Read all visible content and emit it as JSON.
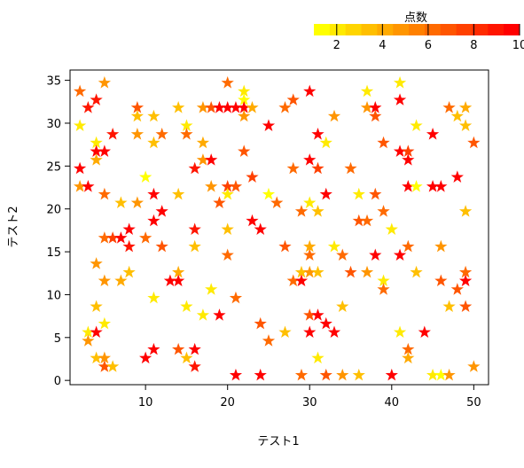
{
  "chart_data": {
    "type": "scatter",
    "marker": "star",
    "xlabel": "テスト1",
    "ylabel": "テスト2",
    "xlim": [
      0.8,
      51.8
    ],
    "ylim": [
      -0.5,
      36.2
    ],
    "x_ticks": [
      10,
      20,
      30,
      40,
      50
    ],
    "y_ticks": [
      0,
      5,
      10,
      15,
      20,
      25,
      30,
      35
    ],
    "grid": false,
    "legend": {
      "title": "点数",
      "placement": "top-right",
      "ticks": [
        2,
        4,
        6,
        8,
        10
      ],
      "range": [
        1,
        10
      ],
      "colors": [
        "#FFFF00",
        "#FFEA00",
        "#FFD500",
        "#FFBF00",
        "#FFAA00",
        "#FF9500",
        "#FF8000",
        "#FF6A00",
        "#FF5500",
        "#FF4000",
        "#FF2B00",
        "#FF1500",
        "#FF0000"
      ]
    },
    "points": [
      {
        "x": 2,
        "y": 33.7,
        "score": 6
      },
      {
        "x": 2,
        "y": 29.7,
        "score": 2
      },
      {
        "x": 2,
        "y": 24.7,
        "score": 10
      },
      {
        "x": 2,
        "y": 22.6,
        "score": 5
      },
      {
        "x": 3,
        "y": 31.8,
        "score": 9
      },
      {
        "x": 3,
        "y": 22.6,
        "score": 10
      },
      {
        "x": 3,
        "y": 5.6,
        "score": 2
      },
      {
        "x": 3,
        "y": 4.6,
        "score": 5
      },
      {
        "x": 4,
        "y": 32.7,
        "score": 9
      },
      {
        "x": 4,
        "y": 27.7,
        "score": 2
      },
      {
        "x": 4,
        "y": 26.7,
        "score": 10
      },
      {
        "x": 4,
        "y": 25.7,
        "score": 4
      },
      {
        "x": 4,
        "y": 13.6,
        "score": 5
      },
      {
        "x": 4,
        "y": 8.6,
        "score": 3
      },
      {
        "x": 4,
        "y": 5.6,
        "score": 10
      },
      {
        "x": 4,
        "y": 2.6,
        "score": 3
      },
      {
        "x": 5,
        "y": 34.7,
        "score": 5
      },
      {
        "x": 5,
        "y": 26.7,
        "score": 10
      },
      {
        "x": 5,
        "y": 21.7,
        "score": 6
      },
      {
        "x": 5,
        "y": 16.6,
        "score": 6
      },
      {
        "x": 5,
        "y": 11.6,
        "score": 5
      },
      {
        "x": 5,
        "y": 6.6,
        "score": 2
      },
      {
        "x": 5,
        "y": 2.6,
        "score": 5
      },
      {
        "x": 5,
        "y": 1.6,
        "score": 7
      },
      {
        "x": 6,
        "y": 28.7,
        "score": 9
      },
      {
        "x": 6,
        "y": 16.6,
        "score": 8
      },
      {
        "x": 6,
        "y": 1.6,
        "score": 3
      },
      {
        "x": 7,
        "y": 20.7,
        "score": 3
      },
      {
        "x": 7,
        "y": 16.6,
        "score": 10
      },
      {
        "x": 7,
        "y": 11.6,
        "score": 4
      },
      {
        "x": 8,
        "y": 17.6,
        "score": 10
      },
      {
        "x": 8,
        "y": 15.6,
        "score": 9
      },
      {
        "x": 8,
        "y": 12.6,
        "score": 3
      },
      {
        "x": 9,
        "y": 31.8,
        "score": 7
      },
      {
        "x": 9,
        "y": 30.8,
        "score": 3
      },
      {
        "x": 9,
        "y": 28.7,
        "score": 5
      },
      {
        "x": 9,
        "y": 20.7,
        "score": 5
      },
      {
        "x": 10,
        "y": 23.7,
        "score": 1
      },
      {
        "x": 10,
        "y": 16.6,
        "score": 6
      },
      {
        "x": 10,
        "y": 2.6,
        "score": 10
      },
      {
        "x": 11,
        "y": 30.8,
        "score": 3
      },
      {
        "x": 11,
        "y": 27.7,
        "score": 3
      },
      {
        "x": 11,
        "y": 21.7,
        "score": 10
      },
      {
        "x": 11,
        "y": 18.6,
        "score": 10
      },
      {
        "x": 11,
        "y": 9.6,
        "score": 2
      },
      {
        "x": 11,
        "y": 3.6,
        "score": 10
      },
      {
        "x": 12,
        "y": 28.7,
        "score": 6
      },
      {
        "x": 12,
        "y": 19.7,
        "score": 10
      },
      {
        "x": 12,
        "y": 15.6,
        "score": 7
      },
      {
        "x": 13,
        "y": 11.6,
        "score": 10
      },
      {
        "x": 14,
        "y": 31.8,
        "score": 3
      },
      {
        "x": 14,
        "y": 21.7,
        "score": 3
      },
      {
        "x": 14,
        "y": 12.6,
        "score": 4
      },
      {
        "x": 14,
        "y": 11.6,
        "score": 10
      },
      {
        "x": 14,
        "y": 3.6,
        "score": 7
      },
      {
        "x": 15,
        "y": 29.7,
        "score": 2
      },
      {
        "x": 15,
        "y": 28.7,
        "score": 6
      },
      {
        "x": 15,
        "y": 8.6,
        "score": 2
      },
      {
        "x": 15,
        "y": 2.6,
        "score": 3
      },
      {
        "x": 16,
        "y": 24.7,
        "score": 9
      },
      {
        "x": 16,
        "y": 17.6,
        "score": 9
      },
      {
        "x": 16,
        "y": 15.6,
        "score": 3
      },
      {
        "x": 16,
        "y": 3.6,
        "score": 10
      },
      {
        "x": 16,
        "y": 1.6,
        "score": 9
      },
      {
        "x": 17,
        "y": 31.8,
        "score": 5
      },
      {
        "x": 17,
        "y": 27.7,
        "score": 4
      },
      {
        "x": 17,
        "y": 25.7,
        "score": 5
      },
      {
        "x": 17,
        "y": 7.6,
        "score": 2
      },
      {
        "x": 18,
        "y": 31.8,
        "score": 7
      },
      {
        "x": 18,
        "y": 25.7,
        "score": 10
      },
      {
        "x": 18,
        "y": 22.6,
        "score": 5
      },
      {
        "x": 18,
        "y": 10.6,
        "score": 2
      },
      {
        "x": 19,
        "y": 31.8,
        "score": 10
      },
      {
        "x": 19,
        "y": 20.7,
        "score": 7
      },
      {
        "x": 19,
        "y": 7.6,
        "score": 10
      },
      {
        "x": 20,
        "y": 34.7,
        "score": 6
      },
      {
        "x": 20,
        "y": 31.8,
        "score": 10
      },
      {
        "x": 20,
        "y": 22.6,
        "score": 8
      },
      {
        "x": 20,
        "y": 21.7,
        "score": 2
      },
      {
        "x": 20,
        "y": 17.6,
        "score": 3
      },
      {
        "x": 20,
        "y": 14.6,
        "score": 6
      },
      {
        "x": 21,
        "y": 31.8,
        "score": 10
      },
      {
        "x": 21,
        "y": 22.6,
        "score": 7
      },
      {
        "x": 21,
        "y": 9.6,
        "score": 6
      },
      {
        "x": 21,
        "y": 0.6,
        "score": 10
      },
      {
        "x": 22,
        "y": 33.7,
        "score": 2
      },
      {
        "x": 22,
        "y": 32.7,
        "score": 1
      },
      {
        "x": 22,
        "y": 31.8,
        "score": 10
      },
      {
        "x": 22,
        "y": 30.8,
        "score": 5
      },
      {
        "x": 22,
        "y": 26.7,
        "score": 7
      },
      {
        "x": 23,
        "y": 31.8,
        "score": 4
      },
      {
        "x": 23,
        "y": 23.7,
        "score": 8
      },
      {
        "x": 23,
        "y": 18.6,
        "score": 10
      },
      {
        "x": 24,
        "y": 17.6,
        "score": 10
      },
      {
        "x": 24,
        "y": 6.6,
        "score": 7
      },
      {
        "x": 24,
        "y": 0.6,
        "score": 10
      },
      {
        "x": 25,
        "y": 29.7,
        "score": 10
      },
      {
        "x": 25,
        "y": 21.7,
        "score": 1
      },
      {
        "x": 25,
        "y": 4.6,
        "score": 6
      },
      {
        "x": 26,
        "y": 20.7,
        "score": 6
      },
      {
        "x": 27,
        "y": 31.8,
        "score": 6
      },
      {
        "x": 27,
        "y": 15.6,
        "score": 7
      },
      {
        "x": 27,
        "y": 5.6,
        "score": 3
      },
      {
        "x": 28,
        "y": 32.7,
        "score": 7
      },
      {
        "x": 28,
        "y": 24.7,
        "score": 6
      },
      {
        "x": 28,
        "y": 11.6,
        "score": 6
      },
      {
        "x": 29,
        "y": 19.7,
        "score": 6
      },
      {
        "x": 29,
        "y": 12.6,
        "score": 3
      },
      {
        "x": 29,
        "y": 11.6,
        "score": 10
      },
      {
        "x": 29,
        "y": 0.6,
        "score": 6
      },
      {
        "x": 30,
        "y": 33.7,
        "score": 10
      },
      {
        "x": 30,
        "y": 25.7,
        "score": 10
      },
      {
        "x": 30,
        "y": 20.7,
        "score": 2
      },
      {
        "x": 30,
        "y": 15.6,
        "score": 4
      },
      {
        "x": 30,
        "y": 14.6,
        "score": 6
      },
      {
        "x": 30,
        "y": 12.6,
        "score": 5
      },
      {
        "x": 30,
        "y": 7.6,
        "score": 7
      },
      {
        "x": 30,
        "y": 5.6,
        "score": 10
      },
      {
        "x": 31,
        "y": 28.7,
        "score": 10
      },
      {
        "x": 31,
        "y": 24.7,
        "score": 8
      },
      {
        "x": 31,
        "y": 19.7,
        "score": 3
      },
      {
        "x": 31,
        "y": 12.6,
        "score": 3
      },
      {
        "x": 31,
        "y": 7.6,
        "score": 10
      },
      {
        "x": 31,
        "y": 2.6,
        "score": 2
      },
      {
        "x": 32,
        "y": 27.7,
        "score": 2
      },
      {
        "x": 32,
        "y": 21.7,
        "score": 10
      },
      {
        "x": 32,
        "y": 6.6,
        "score": 10
      },
      {
        "x": 32,
        "y": 0.6,
        "score": 7
      },
      {
        "x": 33,
        "y": 30.8,
        "score": 5
      },
      {
        "x": 33,
        "y": 15.6,
        "score": 2
      },
      {
        "x": 33,
        "y": 5.6,
        "score": 10
      },
      {
        "x": 34,
        "y": 14.6,
        "score": 6
      },
      {
        "x": 34,
        "y": 8.6,
        "score": 3
      },
      {
        "x": 34,
        "y": 0.6,
        "score": 5
      },
      {
        "x": 35,
        "y": 24.7,
        "score": 6
      },
      {
        "x": 35,
        "y": 12.6,
        "score": 7
      },
      {
        "x": 36,
        "y": 21.7,
        "score": 2
      },
      {
        "x": 36,
        "y": 18.6,
        "score": 7
      },
      {
        "x": 36,
        "y": 0.6,
        "score": 3
      },
      {
        "x": 37,
        "y": 33.7,
        "score": 2
      },
      {
        "x": 37,
        "y": 31.8,
        "score": 5
      },
      {
        "x": 37,
        "y": 18.6,
        "score": 6
      },
      {
        "x": 37,
        "y": 12.6,
        "score": 5
      },
      {
        "x": 38,
        "y": 31.8,
        "score": 10
      },
      {
        "x": 38,
        "y": 30.8,
        "score": 7
      },
      {
        "x": 38,
        "y": 21.7,
        "score": 7
      },
      {
        "x": 38,
        "y": 14.6,
        "score": 10
      },
      {
        "x": 39,
        "y": 27.7,
        "score": 7
      },
      {
        "x": 39,
        "y": 19.7,
        "score": 6
      },
      {
        "x": 39,
        "y": 11.6,
        "score": 2
      },
      {
        "x": 39,
        "y": 10.6,
        "score": 6
      },
      {
        "x": 40,
        "y": 17.6,
        "score": 2
      },
      {
        "x": 40,
        "y": 0.6,
        "score": 10
      },
      {
        "x": 41,
        "y": 34.7,
        "score": 2
      },
      {
        "x": 41,
        "y": 32.7,
        "score": 10
      },
      {
        "x": 41,
        "y": 26.7,
        "score": 10
      },
      {
        "x": 41,
        "y": 14.6,
        "score": 10
      },
      {
        "x": 41,
        "y": 5.6,
        "score": 2
      },
      {
        "x": 42,
        "y": 26.7,
        "score": 8
      },
      {
        "x": 42,
        "y": 25.7,
        "score": 10
      },
      {
        "x": 42,
        "y": 22.6,
        "score": 10
      },
      {
        "x": 42,
        "y": 15.6,
        "score": 6
      },
      {
        "x": 42,
        "y": 3.6,
        "score": 6
      },
      {
        "x": 42,
        "y": 2.6,
        "score": 4
      },
      {
        "x": 43,
        "y": 29.7,
        "score": 2
      },
      {
        "x": 43,
        "y": 22.6,
        "score": 1
      },
      {
        "x": 43,
        "y": 12.6,
        "score": 3
      },
      {
        "x": 44,
        "y": 5.6,
        "score": 10
      },
      {
        "x": 45,
        "y": 28.7,
        "score": 10
      },
      {
        "x": 45,
        "y": 22.6,
        "score": 10
      },
      {
        "x": 45,
        "y": 0.6,
        "score": 2
      },
      {
        "x": 46,
        "y": 22.6,
        "score": 10
      },
      {
        "x": 46,
        "y": 15.6,
        "score": 5
      },
      {
        "x": 46,
        "y": 11.6,
        "score": 7
      },
      {
        "x": 46,
        "y": 0.6,
        "score": 1
      },
      {
        "x": 47,
        "y": 31.8,
        "score": 6
      },
      {
        "x": 47,
        "y": 8.6,
        "score": 3
      },
      {
        "x": 47,
        "y": 0.6,
        "score": 5
      },
      {
        "x": 48,
        "y": 30.8,
        "score": 3
      },
      {
        "x": 48,
        "y": 23.7,
        "score": 10
      },
      {
        "x": 48,
        "y": 10.6,
        "score": 7
      },
      {
        "x": 49,
        "y": 31.8,
        "score": 4
      },
      {
        "x": 49,
        "y": 29.7,
        "score": 3
      },
      {
        "x": 49,
        "y": 19.7,
        "score": 3
      },
      {
        "x": 49,
        "y": 12.6,
        "score": 6
      },
      {
        "x": 49,
        "y": 11.6,
        "score": 10
      },
      {
        "x": 49,
        "y": 8.6,
        "score": 7
      },
      {
        "x": 50,
        "y": 27.7,
        "score": 7
      },
      {
        "x": 50,
        "y": 1.6,
        "score": 5
      }
    ]
  }
}
